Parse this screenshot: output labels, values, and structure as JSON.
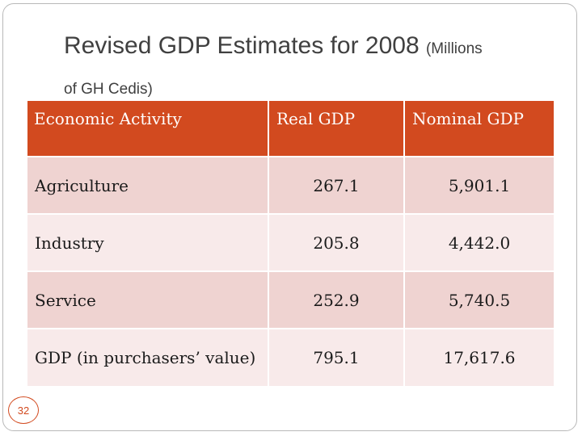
{
  "slide": {
    "title": "Revised GDP Estimates for 2008 ",
    "title_sub_line1": "(Millions",
    "title_sub_line2": "of GH Cedis)",
    "page_number": "32"
  },
  "table": {
    "headers": [
      "Economic  Activity",
      "Real GDP",
      "Nominal GDP"
    ],
    "rows": [
      [
        "Agriculture",
        "267.1",
        "5,901.1"
      ],
      [
        "Industry",
        "205.8",
        "4,442.0"
      ],
      [
        "Service",
        "252.9",
        "5,740.5"
      ],
      [
        "GDP (in purchasers’ value)",
        "795.1",
        "17,617.6"
      ]
    ]
  },
  "colors": {
    "header": "#d24a1f",
    "row_odd": "#efd3d1",
    "row_even": "#f8eaea",
    "accent": "#d24a1f"
  }
}
